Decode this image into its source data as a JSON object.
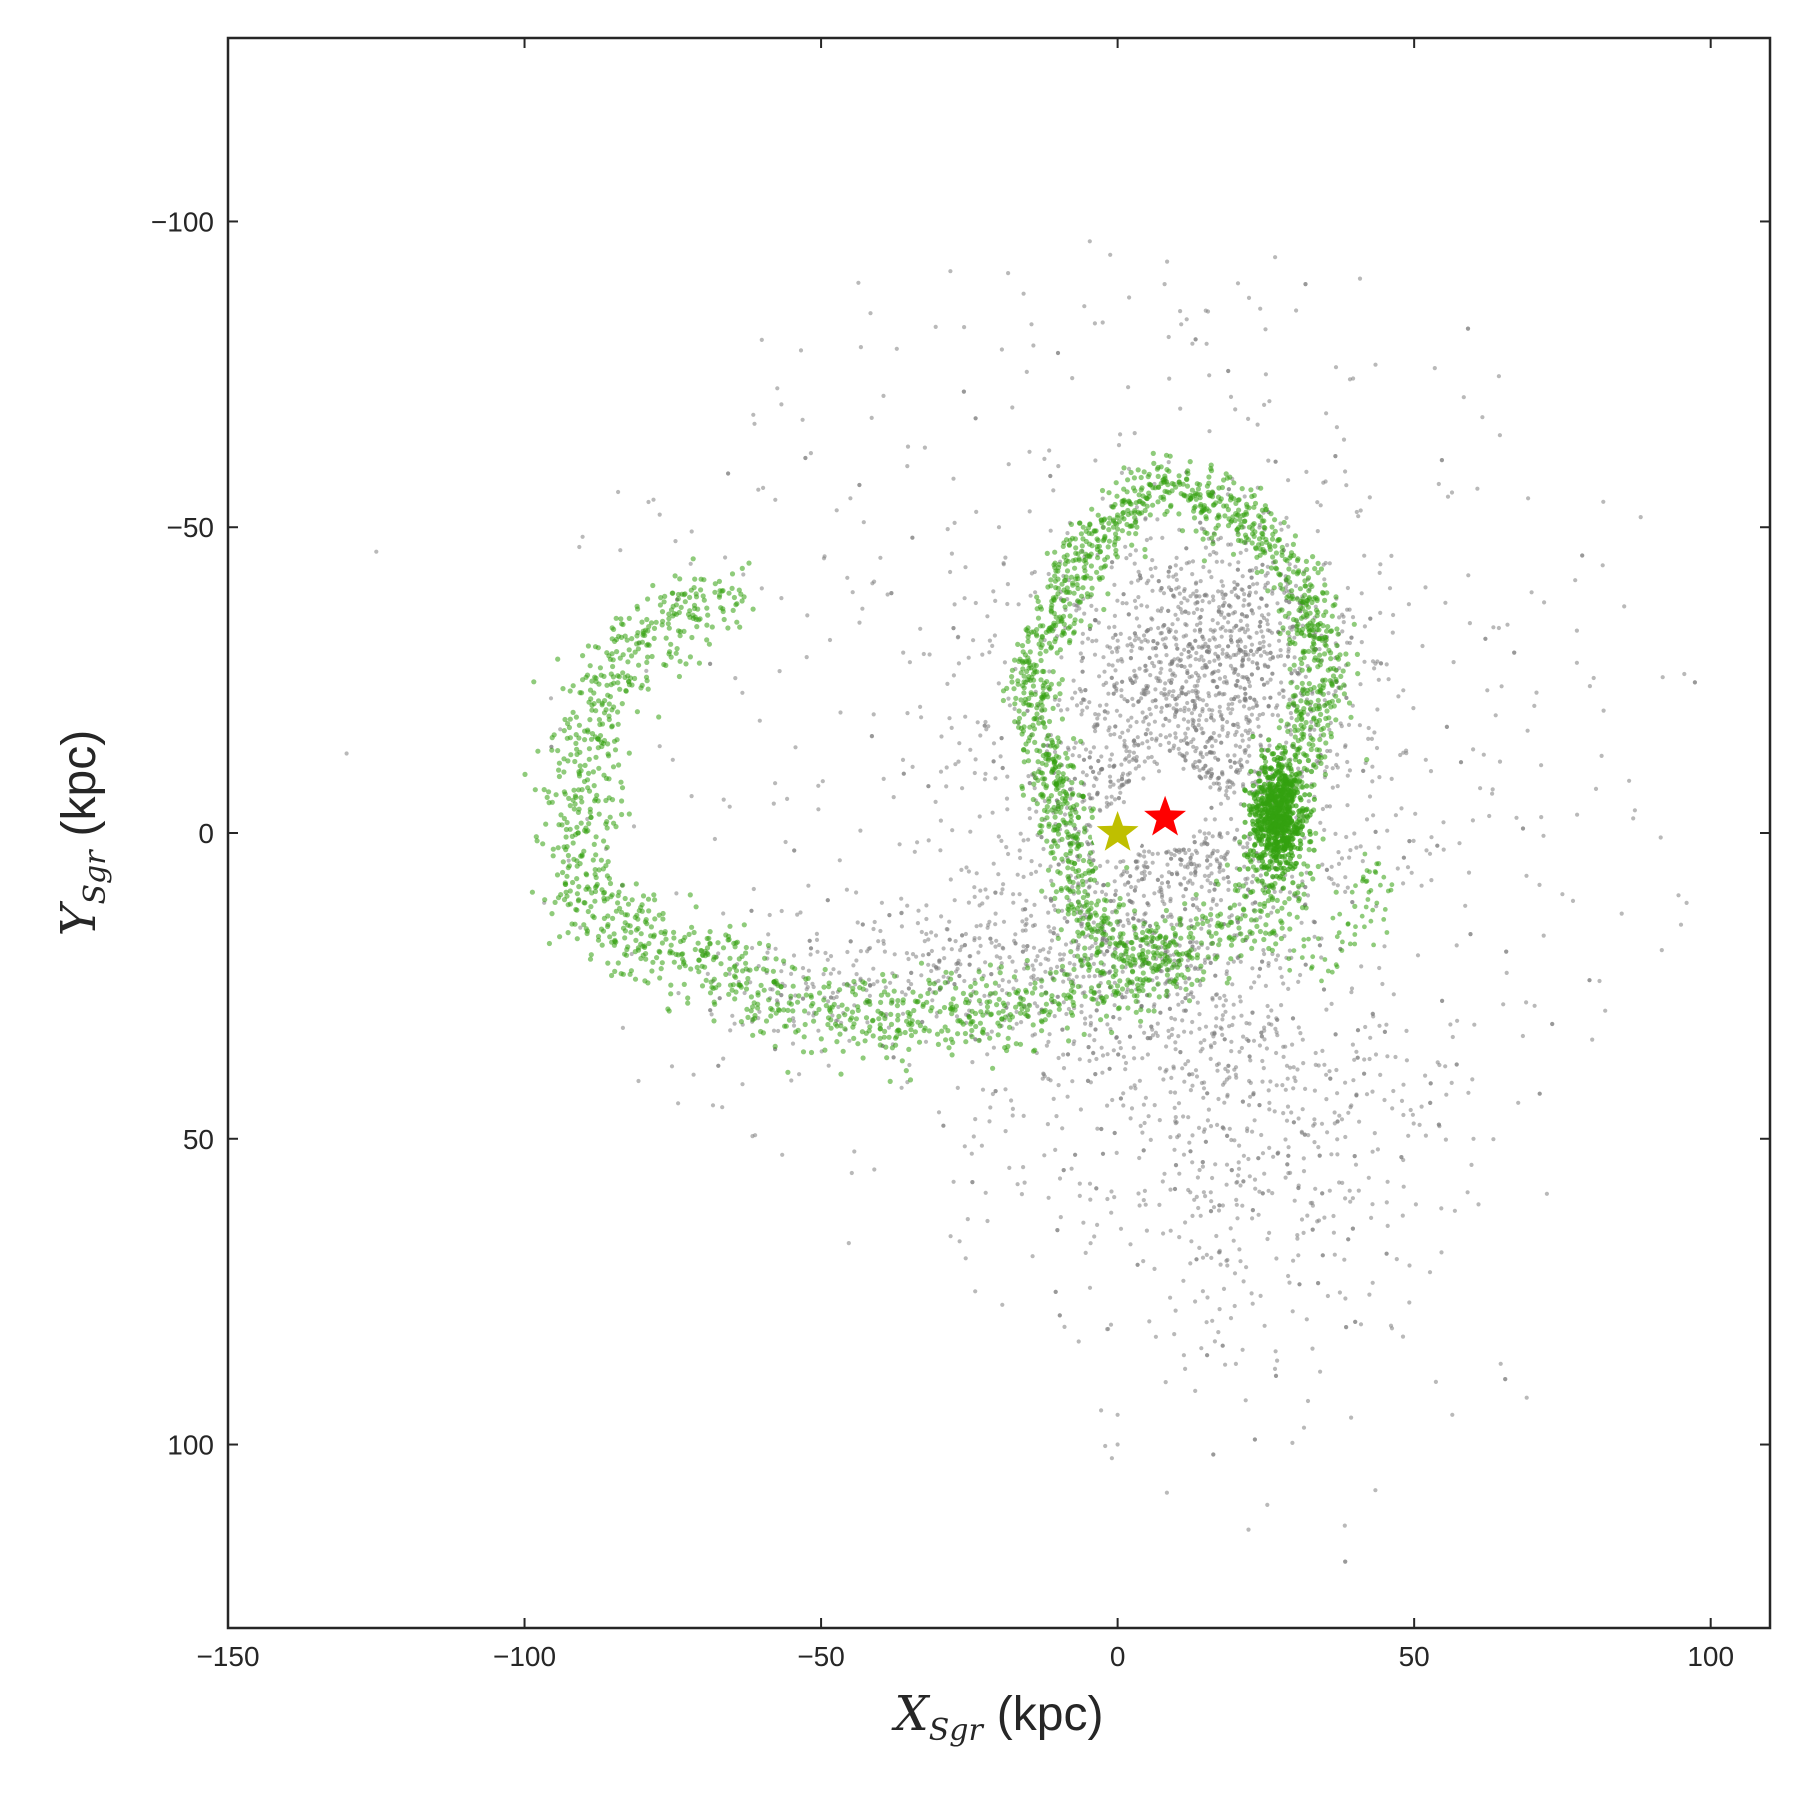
{
  "chart_data": {
    "type": "scatter",
    "title": "",
    "xlabel": {
      "symbol": "X",
      "subscript": "Sgr",
      "unit": "(kpc)"
    },
    "ylabel": {
      "symbol": "Y",
      "subscript": "Sgr",
      "unit": "(kpc)"
    },
    "xlim": [
      -150,
      110
    ],
    "ylim": [
      -130,
      130
    ],
    "y_inverted": true,
    "grid": false,
    "xticks": [
      -150,
      -100,
      -50,
      0,
      50,
      100
    ],
    "xtick_labels": [
      "−150",
      "−100",
      "−50",
      "0",
      "50",
      "100"
    ],
    "yticks": [
      -100,
      -50,
      0,
      50,
      100
    ],
    "ytick_labels": [
      "−100",
      "−50",
      "0",
      "50",
      "100"
    ],
    "series": [
      {
        "color": "#808080",
        "opacity": 0.55,
        "approximate_points": 4200,
        "description_kind": "diffuse halo",
        "sample_points": [
          [
            -20,
            -50
          ],
          [
            -10,
            -60
          ],
          [
            15,
            -80
          ],
          [
            25,
            -75
          ],
          [
            -40,
            -45
          ],
          [
            -60,
            -40
          ],
          [
            10,
            -20
          ],
          [
            5,
            -15
          ],
          [
            20,
            -10
          ],
          [
            -15,
            -25
          ],
          [
            25,
            -5
          ],
          [
            -5,
            10
          ],
          [
            10,
            15
          ],
          [
            25,
            25
          ],
          [
            -20,
            25
          ],
          [
            20,
            40
          ],
          [
            20,
            60
          ],
          [
            15,
            80
          ],
          [
            0,
            100
          ],
          [
            -130,
            -13
          ],
          [
            -125,
            -46
          ],
          [
            60,
            50
          ],
          [
            75,
            10
          ],
          [
            95,
            15
          ]
        ]
      },
      {
        "color": "#33a10f",
        "opacity": 0.55,
        "approximate_points": 3600,
        "description_kind": "stream",
        "sample_points": [
          [
            -91,
            0
          ],
          [
            -88,
            -20
          ],
          [
            -80,
            -33
          ],
          [
            -65,
            -40
          ],
          [
            -90,
            15
          ],
          [
            -80,
            20
          ],
          [
            -70,
            25
          ],
          [
            -55,
            28
          ],
          [
            -40,
            32
          ],
          [
            -25,
            30
          ],
          [
            -12,
            28
          ],
          [
            0,
            25
          ],
          [
            12,
            20
          ],
          [
            25,
            15
          ],
          [
            30,
            5
          ],
          [
            27,
            0
          ],
          [
            30,
            -12
          ],
          [
            35,
            -25
          ],
          [
            32,
            -38
          ],
          [
            25,
            -48
          ],
          [
            16,
            -55
          ],
          [
            8,
            -58
          ],
          [
            0,
            -52
          ],
          [
            -10,
            -40
          ],
          [
            -15,
            -22
          ],
          [
            -10,
            -5
          ],
          [
            -5,
            15
          ],
          [
            42,
            -12
          ],
          [
            44,
            5
          ],
          [
            40,
            12
          ]
        ]
      }
    ],
    "markers": [
      {
        "kind": "star",
        "color": "#bfbf00",
        "x": 0,
        "y": 0
      },
      {
        "kind": "star",
        "color": "#ff0000",
        "x": 8,
        "y": -2.5
      }
    ]
  }
}
